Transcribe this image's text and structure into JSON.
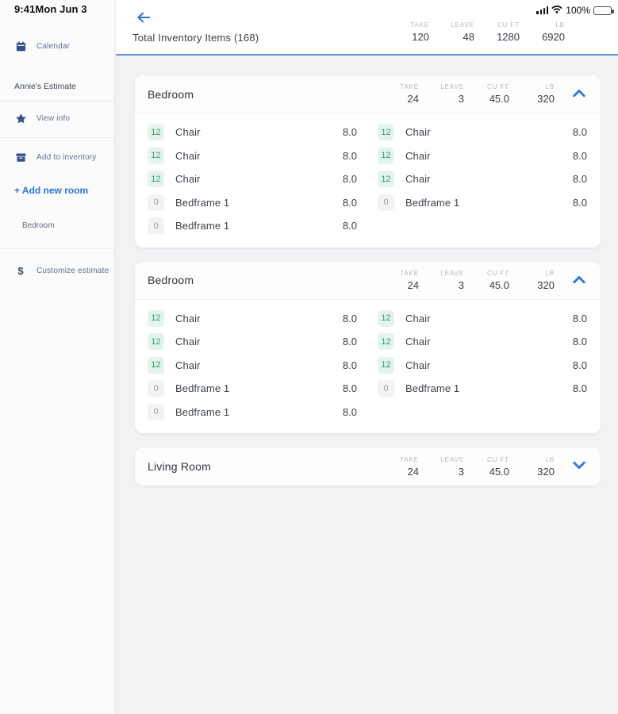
{
  "status_bar": {
    "time": "9:41",
    "date": "Mon Jun 3",
    "battery_percent": "100%"
  },
  "sidebar": {
    "calendar_label": "Calendar",
    "estimate_title": "Annie's Estimate",
    "view_info_label": "View info",
    "add_to_inventory_label": "Add to inventory",
    "add_new_room_label": "+ Add new room",
    "room_link_label": "Bedroom",
    "customize_estimate_label": "Customize estimate"
  },
  "header": {
    "title": "Total Inventory Items  (168)",
    "stats": [
      {
        "label": "TAKE",
        "value": "120"
      },
      {
        "label": "LEAVE",
        "value": "48"
      },
      {
        "label": "CU FT",
        "value": "1280"
      },
      {
        "label": "LB",
        "value": "6920"
      }
    ]
  },
  "colors": {
    "accent_blue": "#2b74e2",
    "header_underline": "#5e92e0",
    "badge_green_bg": "#e4f3ec",
    "badge_green_text": "#27a06b",
    "badge_gray_bg": "#f2f3f4",
    "badge_gray_text": "#9aa0a6",
    "icon_navy": "#33518e"
  },
  "rooms": [
    {
      "name": "Bedroom",
      "expanded": true,
      "stats": [
        {
          "label": "TAKE",
          "value": "24"
        },
        {
          "label": "LEAVE",
          "value": "3"
        },
        {
          "label": "CU FT",
          "value": "45.0"
        },
        {
          "label": "LB",
          "value": "320"
        }
      ],
      "columns": [
        [
          {
            "qty": "12",
            "name": "Chair",
            "value": "8.0"
          },
          {
            "qty": "12",
            "name": "Chair",
            "value": "8.0"
          },
          {
            "qty": "12",
            "name": "Chair",
            "value": "8.0"
          },
          {
            "qty": "0",
            "name": "Bedframe 1",
            "value": "8.0"
          },
          {
            "qty": "0",
            "name": "Bedframe 1",
            "value": "8.0"
          }
        ],
        [
          {
            "qty": "12",
            "name": "Chair",
            "value": "8.0"
          },
          {
            "qty": "12",
            "name": "Chair",
            "value": "8.0"
          },
          {
            "qty": "12",
            "name": "Chair",
            "value": "8.0"
          },
          {
            "qty": "0",
            "name": "Bedframe 1",
            "value": "8.0"
          }
        ]
      ]
    },
    {
      "name": "Bedroom",
      "expanded": true,
      "stats": [
        {
          "label": "TAKE",
          "value": "24"
        },
        {
          "label": "LEAVE",
          "value": "3"
        },
        {
          "label": "CU FT",
          "value": "45.0"
        },
        {
          "label": "LB",
          "value": "320"
        }
      ],
      "columns": [
        [
          {
            "qty": "12",
            "name": "Chair",
            "value": "8.0"
          },
          {
            "qty": "12",
            "name": "Chair",
            "value": "8.0"
          },
          {
            "qty": "12",
            "name": "Chair",
            "value": "8.0"
          },
          {
            "qty": "0",
            "name": "Bedframe 1",
            "value": "8.0"
          },
          {
            "qty": "0",
            "name": "Bedframe 1",
            "value": "8.0"
          }
        ],
        [
          {
            "qty": "12",
            "name": "Chair",
            "value": "8.0"
          },
          {
            "qty": "12",
            "name": "Chair",
            "value": "8.0"
          },
          {
            "qty": "12",
            "name": "Chair",
            "value": "8.0"
          },
          {
            "qty": "0",
            "name": "Bedframe 1",
            "value": "8.0"
          }
        ]
      ]
    },
    {
      "name": "Living Room",
      "expanded": false,
      "stats": [
        {
          "label": "TAKE",
          "value": "24"
        },
        {
          "label": "LEAVE",
          "value": "3"
        },
        {
          "label": "CU FT",
          "value": "45.0"
        },
        {
          "label": "LB",
          "value": "320"
        }
      ],
      "columns": [
        [],
        []
      ]
    }
  ]
}
